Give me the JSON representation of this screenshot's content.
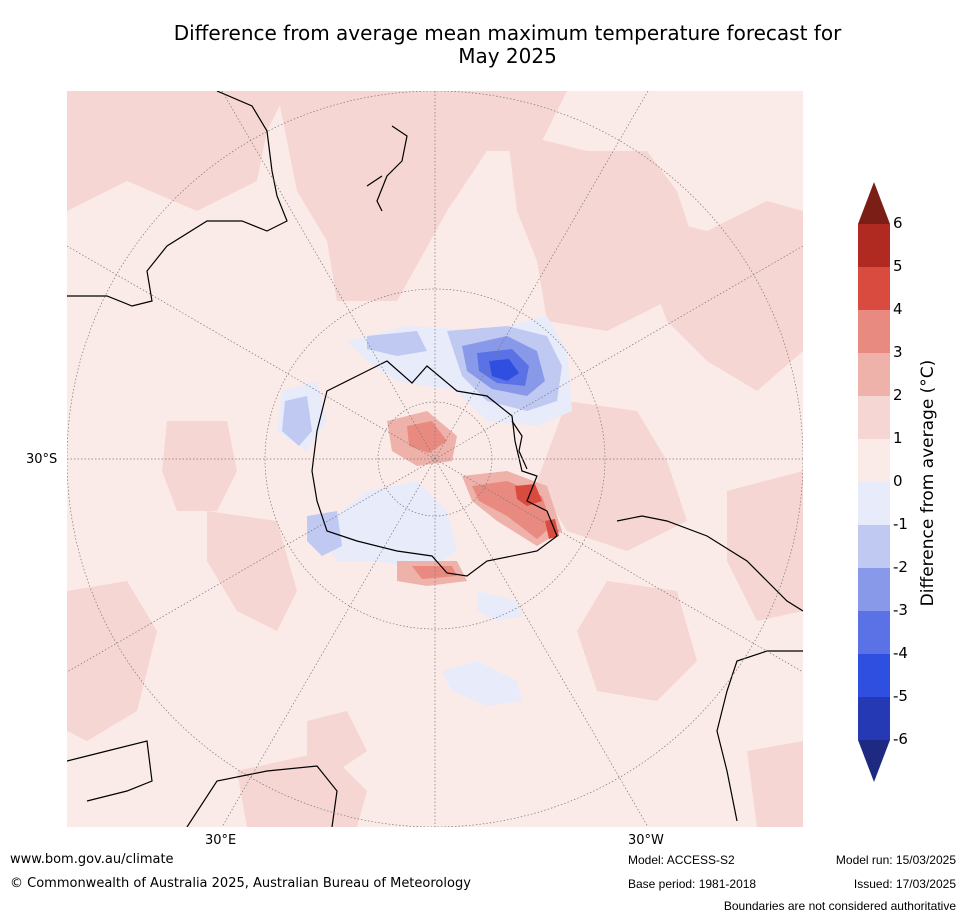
{
  "title_line1": "Difference from average mean maximum temperature forecast for",
  "title_line2": "May 2025",
  "map": {
    "latitude_label": "30°S",
    "longitude_labels": [
      "30°E",
      "30°W"
    ]
  },
  "colorbar": {
    "label": "Difference from average ($^\\circ$C)",
    "label_display": "Difference from average (°C)",
    "ticks": [
      "6",
      "5",
      "4",
      "3",
      "2",
      "1",
      "0",
      "-1",
      "-2",
      "-3",
      "-4",
      "-5",
      "-6"
    ],
    "colors": {
      "over": "#7a1e16",
      "b6_5": "#b02a22",
      "b5_4": "#d94b3f",
      "b4_3": "#e98a80",
      "b3_2": "#eeb2aa",
      "b2_1": "#f5d6d2",
      "b1_0": "#fbebe8",
      "b0_m1": "#e7ebfa",
      "bm1_m2": "#c0c9f2",
      "bm2_m3": "#8999ea",
      "bm3_m4": "#5a72e6",
      "bm4_m5": "#2f4fe0",
      "bm5_m6": "#2639b4",
      "under": "#1e2a82"
    }
  },
  "footer": {
    "url": "www.bom.gov.au/climate",
    "copyright": "© Commonwealth of Australia 2025, Australian Bureau of Meteorology",
    "model": "Model: ACCESS-S2",
    "base_period": "Base period: 1981-2018",
    "model_run": "Model run: 15/03/2025",
    "issued": "Issued: 17/03/2025",
    "disclaimer": "Boundaries are not considered authoritative"
  }
}
